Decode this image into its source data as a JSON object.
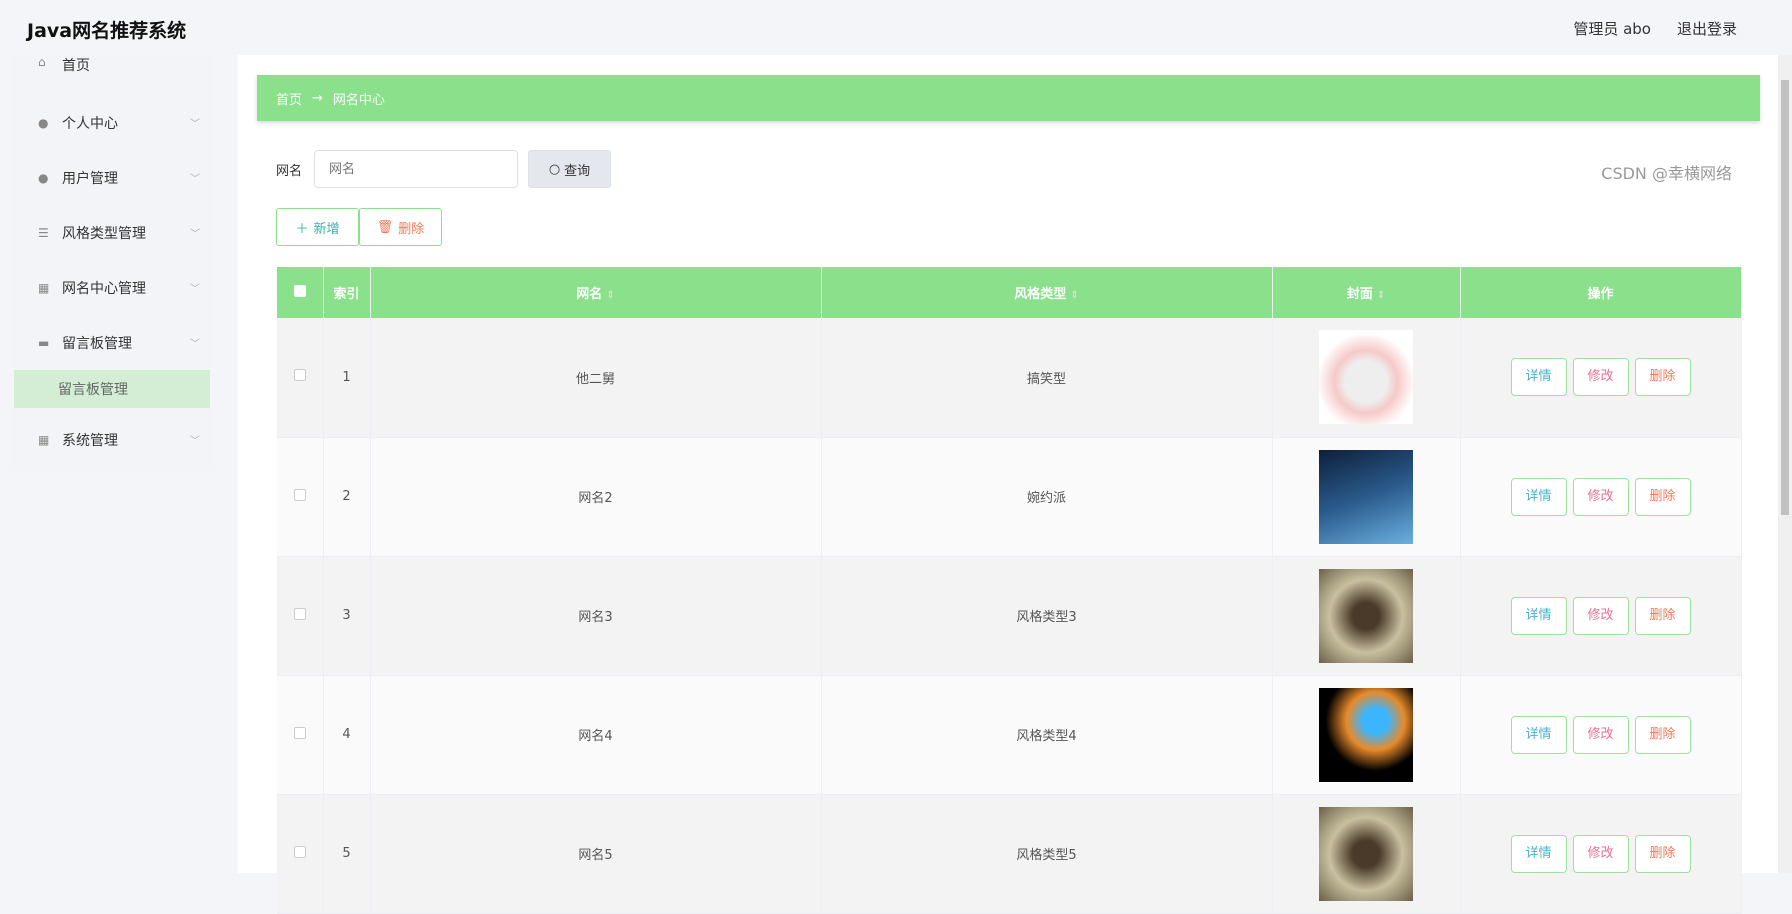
{
  "header": {
    "title": "Java网名推荐系统",
    "user": "管理员 abo",
    "logout": "退出登录"
  },
  "sidebar": {
    "items": [
      {
        "label": "首页",
        "icon": "home-icon"
      },
      {
        "label": "个人中心",
        "icon": "user-icon"
      },
      {
        "label": "用户管理",
        "icon": "user-icon"
      },
      {
        "label": "风格类型管理",
        "icon": "sliders-icon"
      },
      {
        "label": "网名中心管理",
        "icon": "grid-icon"
      },
      {
        "label": "留言板管理",
        "icon": "inbox-icon"
      },
      {
        "label": "系统管理",
        "icon": "grid-icon"
      }
    ],
    "sub_active": "留言板管理"
  },
  "breadcrumb": {
    "home": "首页",
    "arrow": "→",
    "current": "网名中心"
  },
  "search": {
    "label": "网名",
    "placeholder": "网名",
    "button": "查询"
  },
  "actions": {
    "add": "新增",
    "delete": "删除"
  },
  "table": {
    "headers": [
      "索引",
      "网名",
      "风格类型",
      "封面",
      "操作"
    ],
    "rows": [
      {
        "index": "1",
        "name": "他二舅",
        "style": "搞笑型"
      },
      {
        "index": "2",
        "name": "网名2",
        "style": "婉约派"
      },
      {
        "index": "3",
        "name": "网名3",
        "style": "风格类型3"
      },
      {
        "index": "4",
        "name": "网名4",
        "style": "风格类型4"
      },
      {
        "index": "5",
        "name": "网名5",
        "style": "风格类型5"
      }
    ],
    "ops": {
      "detail": "详情",
      "edit": "修改",
      "delete": "删除"
    }
  },
  "watermark": "CSDN @幸横网络",
  "colors": {
    "accent": "#8ae08b",
    "detail": "#4ab3c8",
    "edit": "#e8718f",
    "delete": "#f07a5a"
  }
}
